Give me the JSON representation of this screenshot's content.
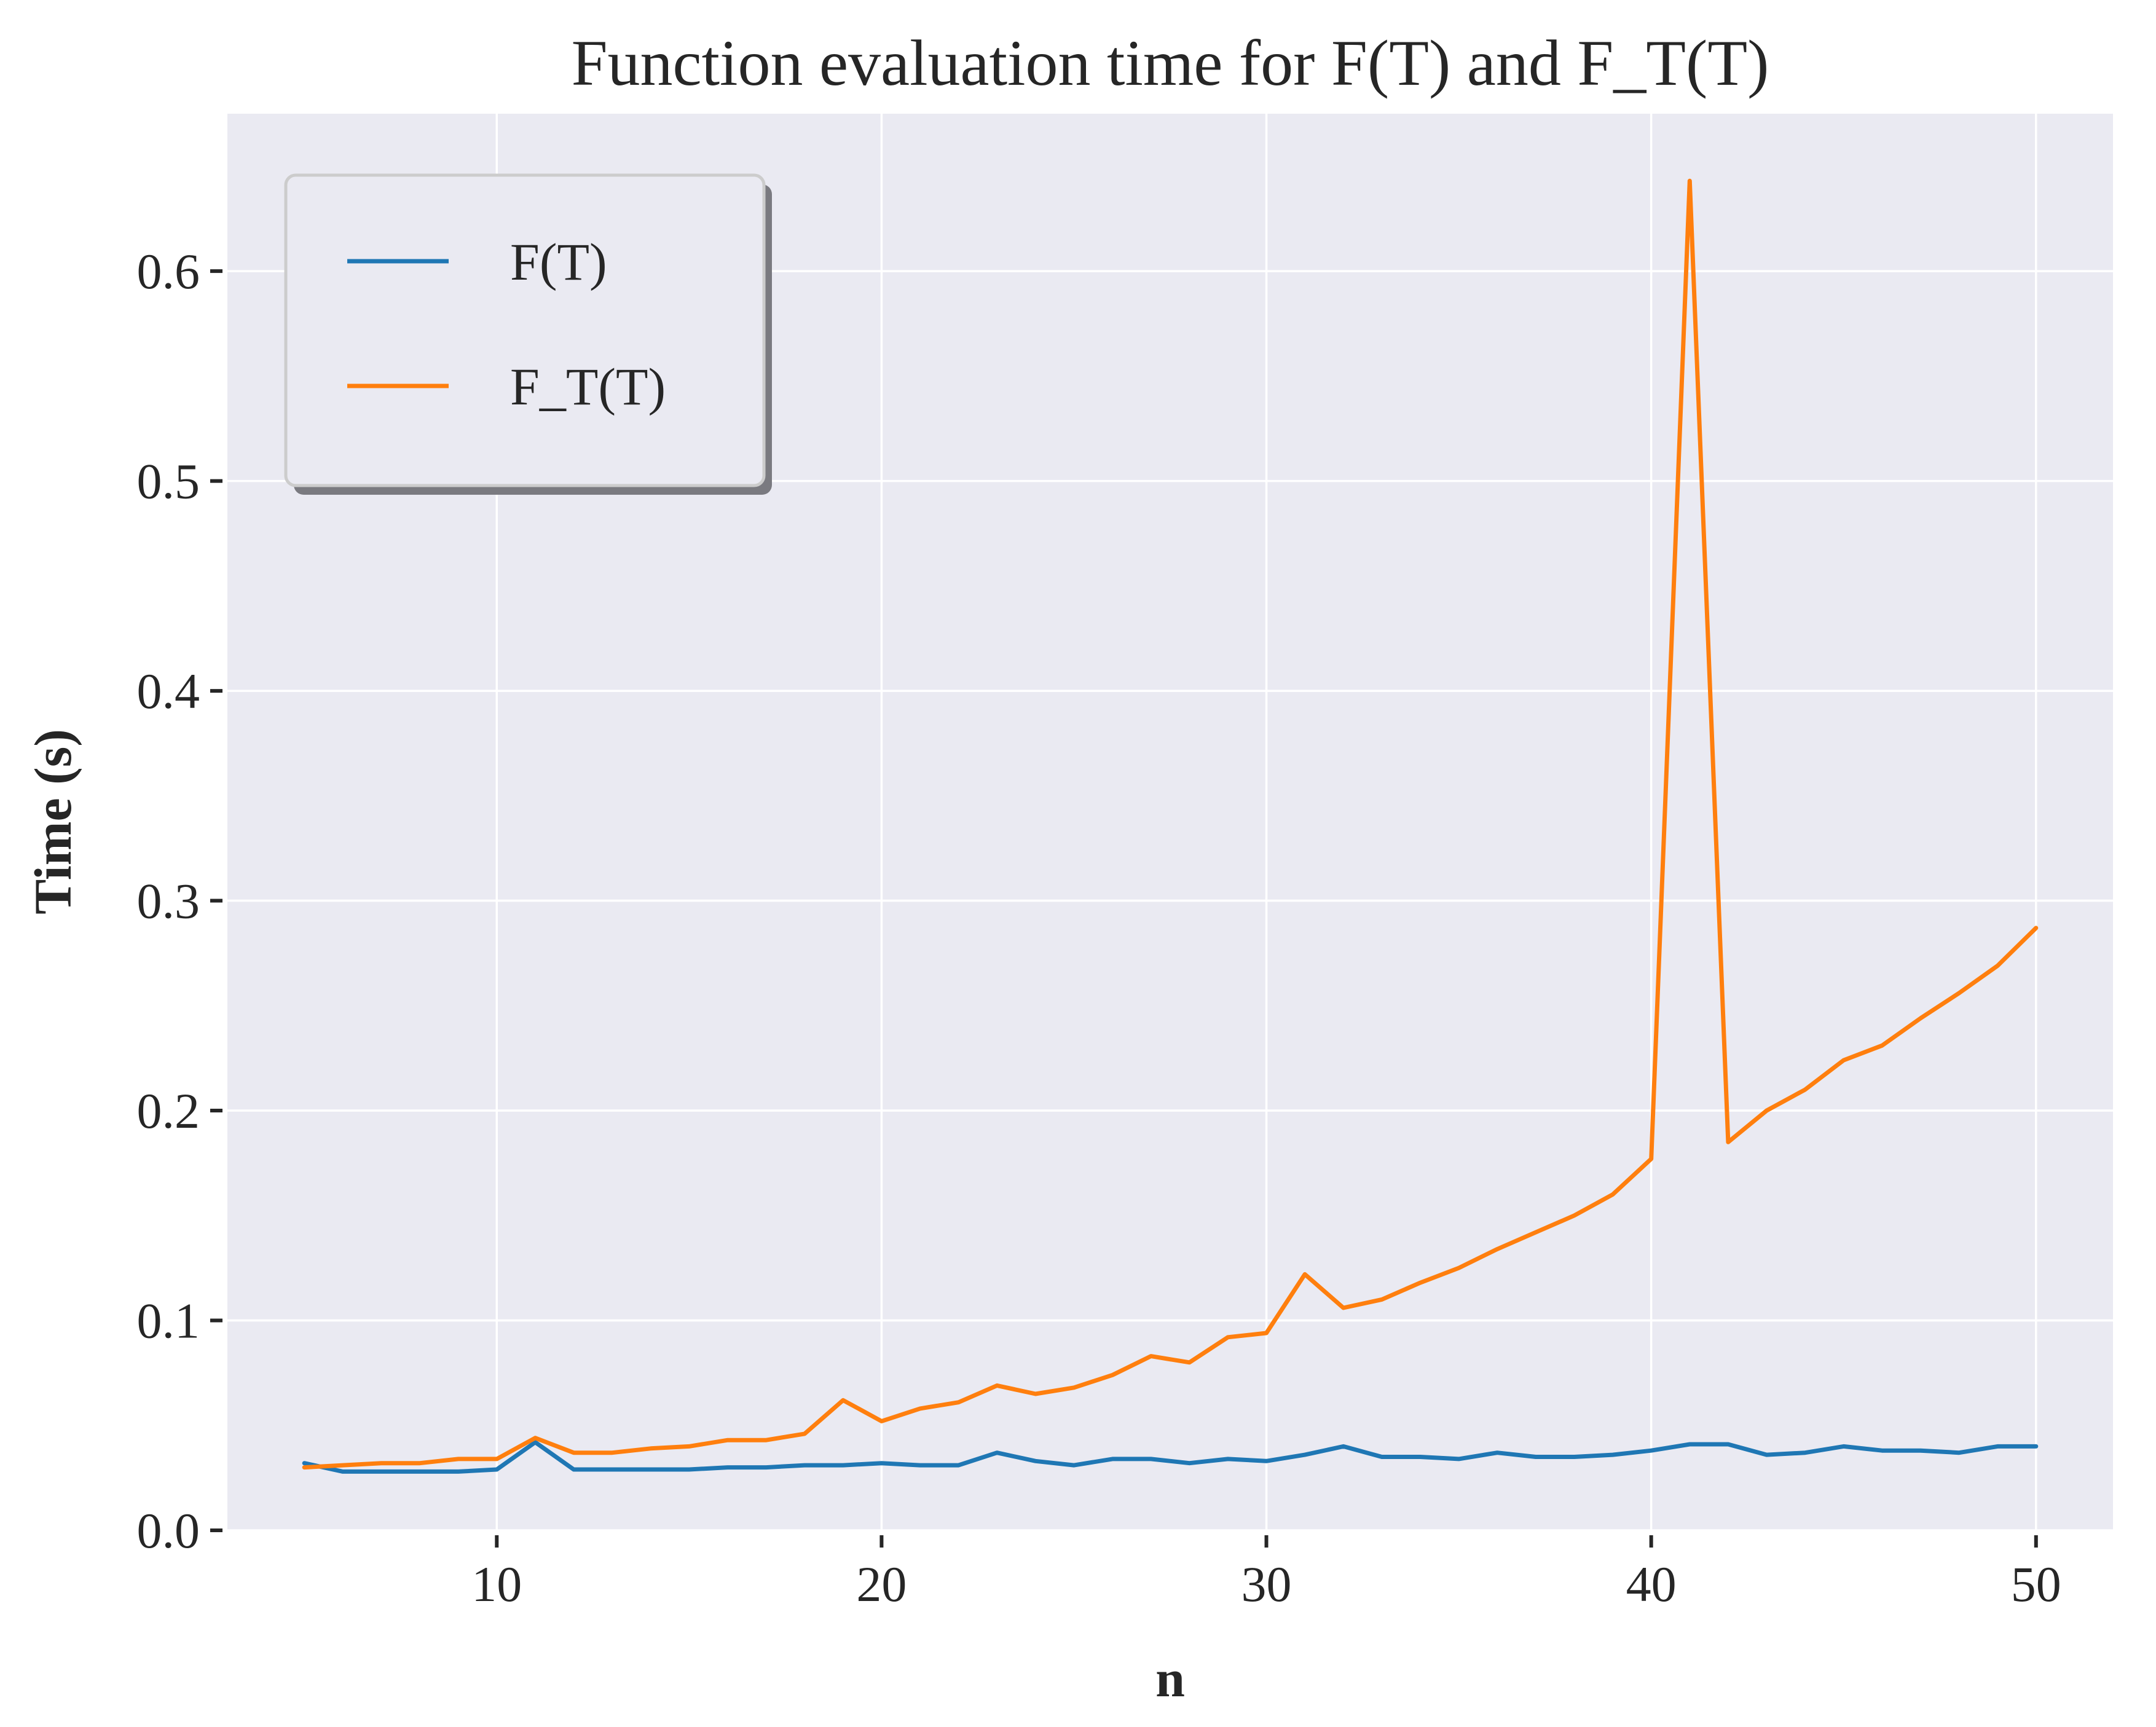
{
  "chart_data": {
    "type": "line",
    "title": "Function evaluation time for F(T) and F_T(T)",
    "xlabel": "n",
    "ylabel": "Time (s)",
    "xlim": [
      3,
      52
    ],
    "ylim": [
      0,
      0.675
    ],
    "xticks": [
      10,
      20,
      30,
      40,
      50
    ],
    "yticks": [
      0.0,
      0.1,
      0.2,
      0.3,
      0.4,
      0.5,
      0.6
    ],
    "grid": true,
    "legend": "upper-left",
    "x": [
      5,
      6,
      7,
      8,
      9,
      10,
      11,
      12,
      13,
      14,
      15,
      16,
      17,
      18,
      19,
      20,
      21,
      22,
      23,
      24,
      25,
      26,
      27,
      28,
      29,
      30,
      31,
      32,
      33,
      34,
      35,
      36,
      37,
      38,
      39,
      40,
      41,
      42,
      43,
      44,
      45,
      46,
      47,
      48,
      49,
      50
    ],
    "series": [
      {
        "name": "F(T)",
        "color": "#1f77b4",
        "values": [
          0.032,
          0.028,
          0.028,
          0.028,
          0.028,
          0.029,
          0.042,
          0.029,
          0.029,
          0.029,
          0.029,
          0.03,
          0.03,
          0.031,
          0.031,
          0.032,
          0.031,
          0.031,
          0.037,
          0.033,
          0.031,
          0.034,
          0.034,
          0.032,
          0.034,
          0.033,
          0.036,
          0.04,
          0.035,
          0.035,
          0.034,
          0.037,
          0.035,
          0.035,
          0.036,
          0.038,
          0.041,
          0.041,
          0.036,
          0.037,
          0.04,
          0.038,
          0.038,
          0.037,
          0.04,
          0.04
        ]
      },
      {
        "name": "F_T(T)",
        "color": "#ff7f0e",
        "values": [
          0.03,
          0.031,
          0.032,
          0.032,
          0.034,
          0.034,
          0.044,
          0.037,
          0.037,
          0.039,
          0.04,
          0.043,
          0.043,
          0.046,
          0.062,
          0.052,
          0.058,
          0.061,
          0.069,
          0.065,
          0.068,
          0.074,
          0.083,
          0.08,
          0.092,
          0.094,
          0.122,
          0.106,
          0.11,
          0.118,
          0.125,
          0.134,
          0.142,
          0.15,
          0.16,
          0.177,
          0.643,
          0.185,
          0.2,
          0.21,
          0.224,
          0.231,
          0.244,
          0.256,
          0.269,
          0.287
        ]
      }
    ]
  }
}
